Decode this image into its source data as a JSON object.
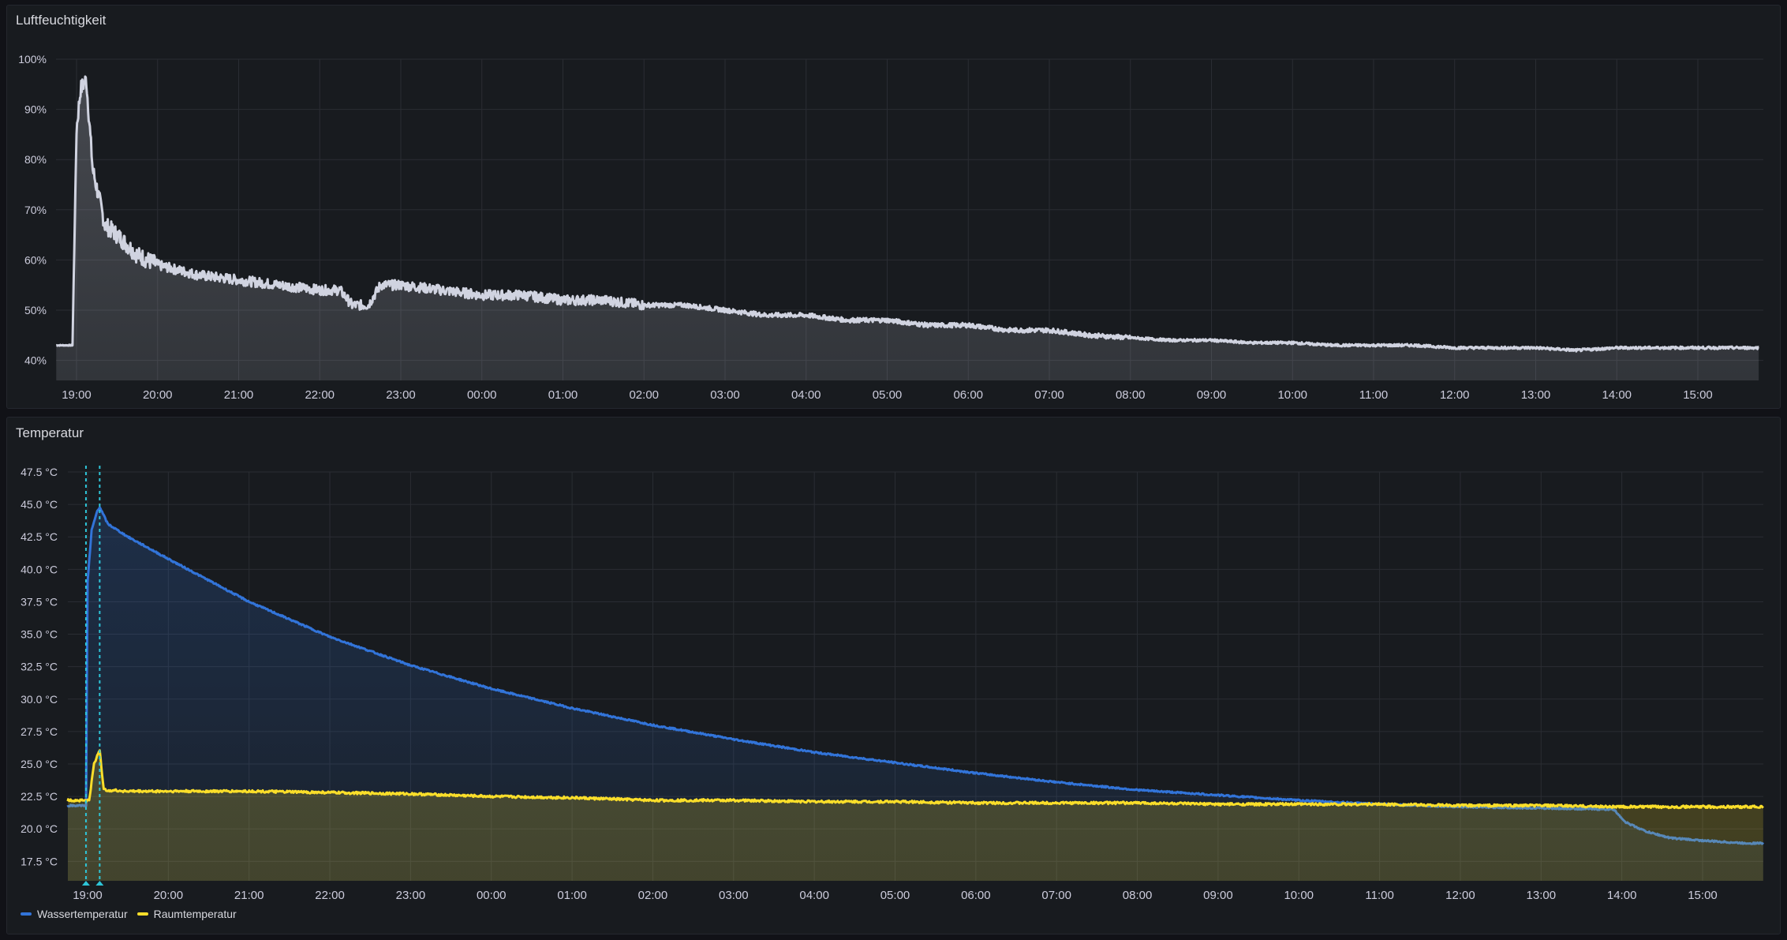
{
  "panels": {
    "humidity": {
      "title": "Luftfeuchtigkeit"
    },
    "temperature": {
      "title": "Temperatur"
    }
  },
  "colors": {
    "humidity_line": "#d0d3e0",
    "water": "#3274d9",
    "room": "#fade2a",
    "annotation": "#2ec5d8",
    "grid": "#2a2d33",
    "tick_text": "#ccccdc"
  },
  "chart_data": [
    {
      "type": "area",
      "title": "Luftfeuchtigkeit",
      "x_ticks": [
        "19:00",
        "20:00",
        "21:00",
        "22:00",
        "23:00",
        "00:00",
        "01:00",
        "02:00",
        "03:00",
        "04:00",
        "05:00",
        "06:00",
        "07:00",
        "08:00",
        "09:00",
        "10:00",
        "11:00",
        "12:00",
        "13:00",
        "14:00",
        "15:00"
      ],
      "y_ticks": [
        "40%",
        "50%",
        "60%",
        "70%",
        "80%",
        "90%",
        "100%"
      ],
      "ylim": [
        36,
        100
      ],
      "grid": true,
      "series": [
        {
          "values_by_hour_offset": [
            [
              -0.25,
              43
            ],
            [
              -0.05,
              43
            ],
            [
              0.0,
              86
            ],
            [
              0.05,
              94
            ],
            [
              0.12,
              96
            ],
            [
              0.2,
              78
            ],
            [
              0.35,
              67
            ],
            [
              0.5,
              65
            ],
            [
              0.75,
              61
            ],
            [
              1.0,
              59
            ],
            [
              1.5,
              57
            ],
            [
              2.0,
              56
            ],
            [
              2.5,
              55
            ],
            [
              3.0,
              54
            ],
            [
              3.25,
              54
            ],
            [
              3.4,
              51
            ],
            [
              3.6,
              51
            ],
            [
              3.75,
              55
            ],
            [
              4.0,
              55
            ],
            [
              4.5,
              54
            ],
            [
              5.0,
              53
            ],
            [
              5.5,
              53
            ],
            [
              6.0,
              52
            ],
            [
              6.5,
              52
            ],
            [
              7.0,
              51
            ],
            [
              7.5,
              51
            ],
            [
              8.0,
              50
            ],
            [
              8.5,
              49
            ],
            [
              9.0,
              49
            ],
            [
              9.5,
              48
            ],
            [
              10.0,
              48
            ],
            [
              10.5,
              47
            ],
            [
              11.0,
              47
            ],
            [
              11.5,
              46
            ],
            [
              12.0,
              46
            ],
            [
              12.5,
              45
            ],
            [
              13.0,
              44.5
            ],
            [
              13.5,
              44
            ],
            [
              14.0,
              44
            ],
            [
              14.5,
              43.5
            ],
            [
              15.0,
              43.5
            ],
            [
              15.5,
              43
            ],
            [
              16.0,
              43
            ],
            [
              16.5,
              43
            ],
            [
              17.0,
              42.5
            ],
            [
              17.5,
              42.5
            ],
            [
              18.0,
              42.5
            ],
            [
              18.5,
              42
            ],
            [
              19.0,
              42.5
            ],
            [
              19.5,
              42.5
            ],
            [
              20.0,
              42.5
            ],
            [
              20.5,
              42.5
            ],
            [
              20.75,
              42.5
            ]
          ]
        }
      ]
    },
    {
      "type": "area",
      "title": "Temperatur",
      "x_ticks": [
        "19:00",
        "20:00",
        "21:00",
        "22:00",
        "23:00",
        "00:00",
        "01:00",
        "02:00",
        "03:00",
        "04:00",
        "05:00",
        "06:00",
        "07:00",
        "08:00",
        "09:00",
        "10:00",
        "11:00",
        "12:00",
        "13:00",
        "14:00",
        "15:00"
      ],
      "y_ticks": [
        "17.5 °C",
        "20.0 °C",
        "22.5 °C",
        "25.0 °C",
        "27.5 °C",
        "30.0 °C",
        "32.5 °C",
        "35.0 °C",
        "37.5 °C",
        "40.0 °C",
        "42.5 °C",
        "45.0 °C",
        "47.5 °C"
      ],
      "ylim": [
        16,
        47.5
      ],
      "grid": true,
      "legend_position": "bottom-left",
      "annotations_hour_offset": [
        -0.02,
        0.15
      ],
      "series": [
        {
          "name": "Wassertemperatur",
          "values_by_hour_offset": [
            [
              -0.25,
              21.8
            ],
            [
              -0.02,
              21.8
            ],
            [
              0.0,
              39
            ],
            [
              0.05,
              43
            ],
            [
              0.12,
              44.5
            ],
            [
              0.15,
              44.8
            ],
            [
              0.25,
              43.5
            ],
            [
              0.5,
              42.5
            ],
            [
              1.0,
              40.8
            ],
            [
              2.0,
              37.5
            ],
            [
              3.0,
              34.8
            ],
            [
              4.0,
              32.6
            ],
            [
              5.0,
              30.8
            ],
            [
              6.0,
              29.3
            ],
            [
              7.0,
              28
            ],
            [
              8.0,
              26.9
            ],
            [
              9.0,
              25.9
            ],
            [
              10.0,
              25.1
            ],
            [
              11.0,
              24.3
            ],
            [
              12.0,
              23.6
            ],
            [
              13.0,
              23
            ],
            [
              14.0,
              22.6
            ],
            [
              15.0,
              22.2
            ],
            [
              16.0,
              21.9
            ],
            [
              17.0,
              21.7
            ],
            [
              18.0,
              21.6
            ],
            [
              18.9,
              21.5
            ],
            [
              19.05,
              20.5
            ],
            [
              19.3,
              19.8
            ],
            [
              19.6,
              19.3
            ],
            [
              20.0,
              19.1
            ],
            [
              20.5,
              18.9
            ],
            [
              20.75,
              18.9
            ]
          ]
        },
        {
          "name": "Raumtemperatur",
          "values_by_hour_offset": [
            [
              -0.25,
              22.2
            ],
            [
              0.02,
              22.2
            ],
            [
              0.08,
              25
            ],
            [
              0.15,
              26.1
            ],
            [
              0.2,
              23
            ],
            [
              0.5,
              22.9
            ],
            [
              1.0,
              22.9
            ],
            [
              2.0,
              22.9
            ],
            [
              3.0,
              22.8
            ],
            [
              4.0,
              22.7
            ],
            [
              5.0,
              22.5
            ],
            [
              6.0,
              22.4
            ],
            [
              7.0,
              22.2
            ],
            [
              8.0,
              22.2
            ],
            [
              9.0,
              22.1
            ],
            [
              10.0,
              22.1
            ],
            [
              11.0,
              22
            ],
            [
              12.0,
              22
            ],
            [
              13.0,
              22
            ],
            [
              14.0,
              21.9
            ],
            [
              15.0,
              21.9
            ],
            [
              16.0,
              21.9
            ],
            [
              17.0,
              21.8
            ],
            [
              18.0,
              21.8
            ],
            [
              19.0,
              21.7
            ],
            [
              20.0,
              21.7
            ],
            [
              20.75,
              21.7
            ]
          ]
        }
      ]
    }
  ],
  "legend": [
    {
      "label": "Wassertemperatur"
    },
    {
      "label": "Raumtemperatur"
    }
  ]
}
